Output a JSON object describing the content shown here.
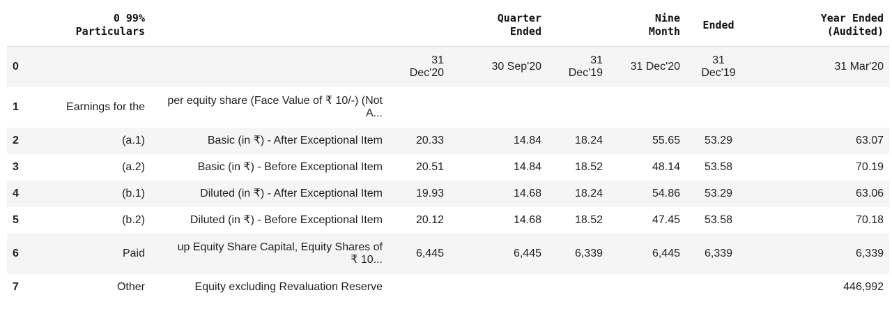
{
  "table": {
    "headers": [
      "",
      "0 99%\nParticulars",
      "",
      "",
      "Quarter\nEnded",
      "",
      "Nine\nMonth",
      "Ended",
      "Year Ended\n(Audited)"
    ],
    "rows": [
      {
        "cells": [
          "0",
          "",
          "",
          "31\nDec'20",
          "30 Sep'20",
          "31\nDec'19",
          "31 Dec'20",
          "31\nDec'19",
          "31 Mar'20"
        ]
      },
      {
        "cells": [
          "1",
          "Earnings for the",
          "per equity share (Face Value of ₹ 10/-) (Not\nA...",
          "",
          "",
          "",
          "",
          "",
          ""
        ]
      },
      {
        "cells": [
          "2",
          "(a.1)",
          "Basic (in ₹) - After Exceptional Item",
          "20.33",
          "14.84",
          "18.24",
          "55.65",
          "53.29",
          "63.07"
        ]
      },
      {
        "cells": [
          "3",
          "(a.2)",
          "Basic (in ₹) - Before Exceptional Item",
          "20.51",
          "14.84",
          "18.52",
          "48.14",
          "53.58",
          "70.19"
        ]
      },
      {
        "cells": [
          "4",
          "(b.1)",
          "Diluted (in ₹) - After Exceptional Item",
          "19.93",
          "14.68",
          "18.24",
          "54.86",
          "53.29",
          "63.06"
        ]
      },
      {
        "cells": [
          "5",
          "(b.2)",
          "Diluted (in ₹) - Before Exceptional Item",
          "20.12",
          "14.68",
          "18.52",
          "47.45",
          "53.58",
          "70.18"
        ]
      },
      {
        "cells": [
          "6",
          "Paid",
          "up Equity Share Capital, Equity Shares of\n₹ 10...",
          "6,445",
          "6,445",
          "6,339",
          "6,445",
          "6,339",
          "6,339"
        ]
      },
      {
        "cells": [
          "7",
          "Other",
          "Equity excluding Revaluation Reserve",
          "",
          "",
          "",
          "",
          "",
          "446,992"
        ]
      }
    ]
  }
}
